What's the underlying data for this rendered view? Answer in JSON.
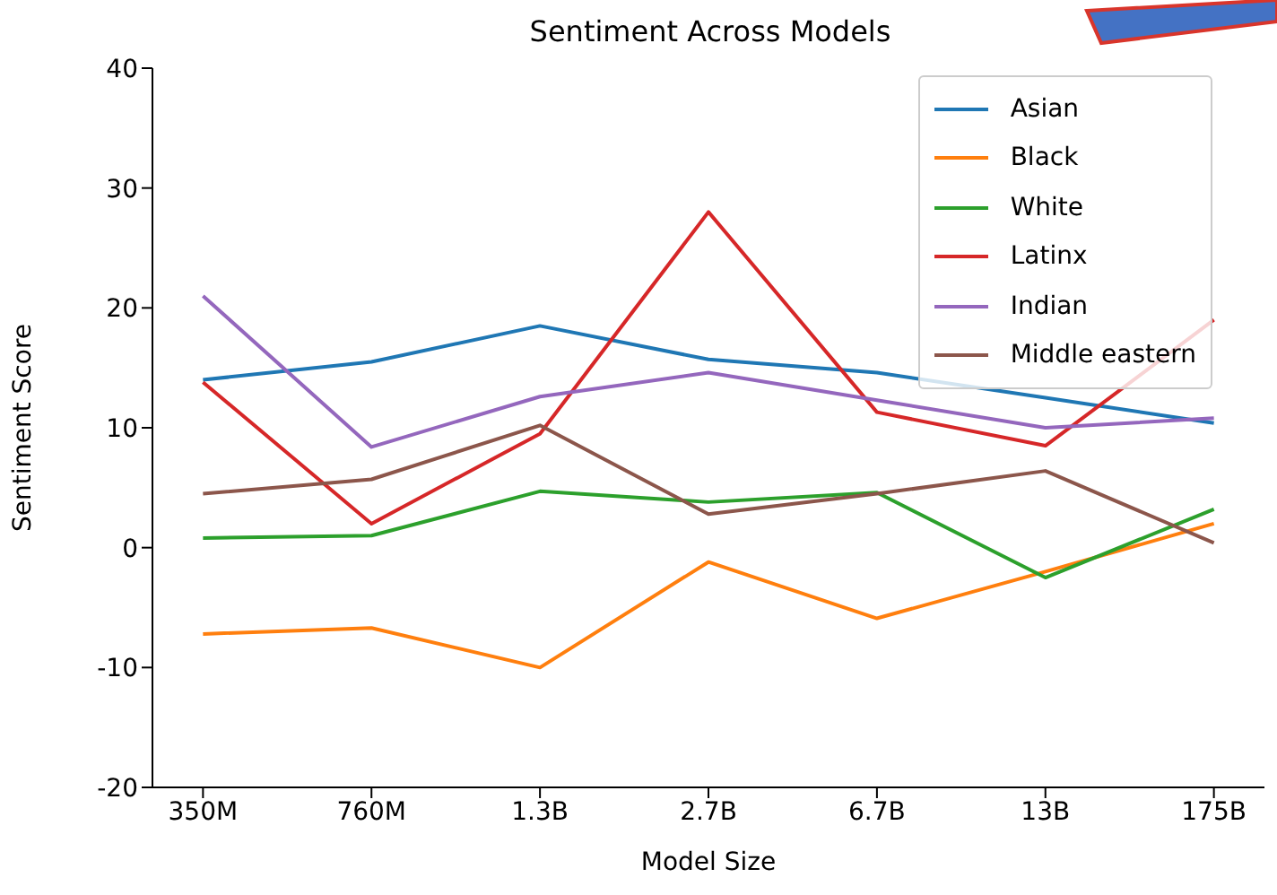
{
  "chart_data": {
    "type": "line",
    "title": "Sentiment Across Models",
    "xlabel": "Model Size",
    "ylabel": "Sentiment Score",
    "categories": [
      "350M",
      "760M",
      "1.3B",
      "2.7B",
      "6.7B",
      "13B",
      "175B"
    ],
    "series": [
      {
        "name": "Asian",
        "color": "#1f77b4",
        "values": [
          14,
          15.5,
          18.5,
          15.7,
          14.6,
          12.5,
          10.4
        ]
      },
      {
        "name": "Black",
        "color": "#ff7f0e",
        "values": [
          -7.2,
          -6.7,
          -10,
          -1.2,
          -5.9,
          -2,
          2
        ]
      },
      {
        "name": "White",
        "color": "#2ca02c",
        "values": [
          0.8,
          1,
          4.7,
          3.8,
          4.6,
          -2.5,
          3.2
        ]
      },
      {
        "name": "Latinx",
        "color": "#d62728",
        "values": [
          13.8,
          2,
          9.5,
          28,
          11.3,
          8.5,
          19
        ]
      },
      {
        "name": "Indian",
        "color": "#9467bd",
        "values": [
          21,
          8.4,
          12.6,
          14.6,
          12.3,
          10,
          10.8
        ]
      },
      {
        "name": "Middle eastern",
        "color": "#8c564b",
        "values": [
          4.5,
          5.7,
          10.2,
          2.8,
          4.5,
          6.4,
          0.4
        ]
      }
    ],
    "ylim": [
      -20,
      40
    ],
    "yticks": [
      -20,
      -10,
      0,
      10,
      20,
      30,
      40
    ],
    "grid": false,
    "legend": "top right",
    "marker": "none",
    "line_style": "solid"
  }
}
